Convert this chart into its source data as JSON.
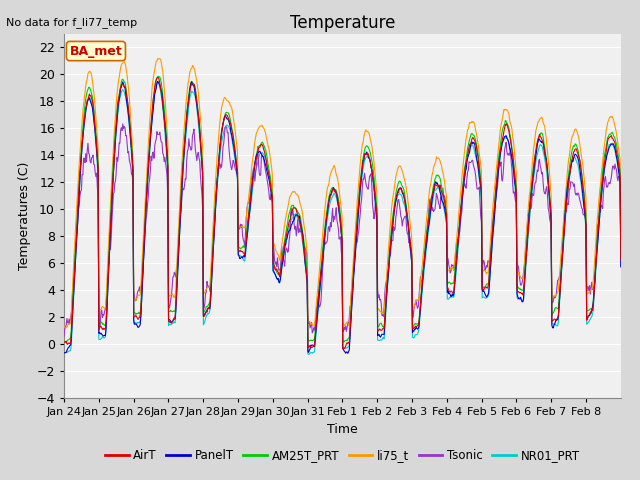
{
  "title": "Temperature",
  "xlabel": "Time",
  "ylabel": "Temperatures (C)",
  "annotation": "No data for f_li77_temp",
  "legend_label": "BA_met",
  "ylim": [
    -4,
    23
  ],
  "yticks": [
    -4,
    -2,
    0,
    2,
    4,
    6,
    8,
    10,
    12,
    14,
    16,
    18,
    20,
    22
  ],
  "x_tick_labels": [
    "Jan 24",
    "Jan 25",
    "Jan 26",
    "Jan 27",
    "Jan 28",
    "Jan 29",
    "Jan 30",
    "Jan 31",
    "Feb 1",
    "Feb 2",
    "Feb 3",
    "Feb 4",
    "Feb 5",
    "Feb 6",
    "Feb 7",
    "Feb 8"
  ],
  "series": {
    "AirT": {
      "color": "#dd0000"
    },
    "PanelT": {
      "color": "#0000cc"
    },
    "AM25T_PRT": {
      "color": "#00cc00"
    },
    "li75_t": {
      "color": "#ff9900"
    },
    "Tsonic": {
      "color": "#9933cc"
    },
    "NR01_PRT": {
      "color": "#00cccc"
    }
  },
  "fig_background": "#d8d8d8",
  "plot_background": "#f0f0f0",
  "grid_color": "#ffffff",
  "title_fontsize": 12,
  "axis_fontsize": 9,
  "tick_fontsize": 9
}
